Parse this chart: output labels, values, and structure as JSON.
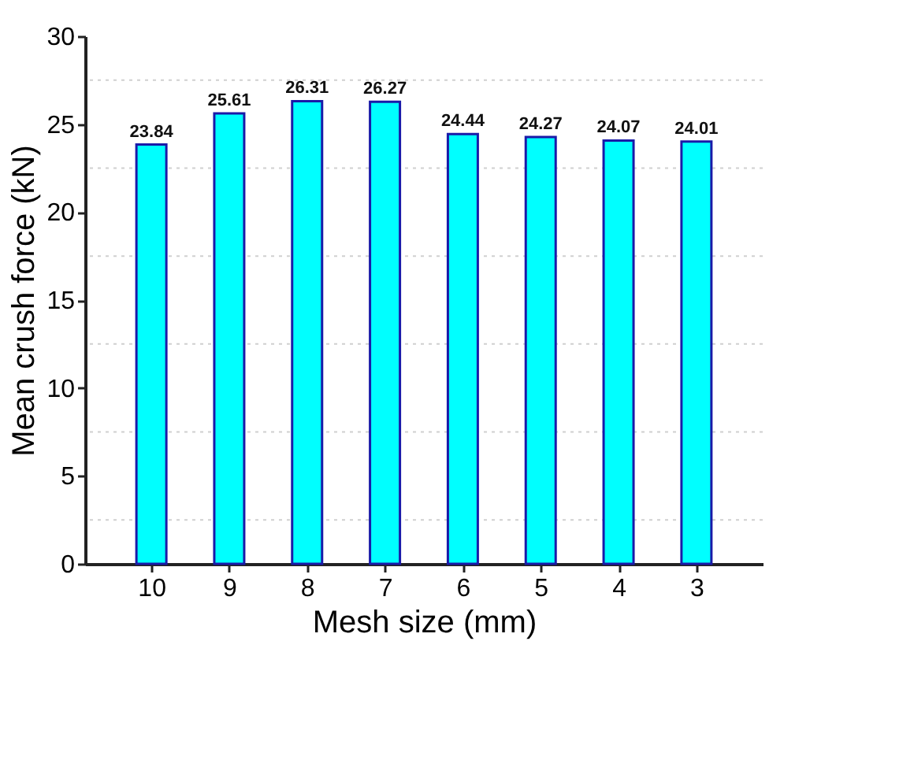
{
  "chart_data": {
    "type": "bar",
    "xlabel": "Mesh size (mm)",
    "ylabel": "Mean crush force (kN)",
    "categories": [
      "10",
      "9",
      "8",
      "7",
      "6",
      "5",
      "4",
      "3"
    ],
    "values": [
      23.84,
      25.61,
      26.31,
      26.27,
      24.44,
      24.27,
      24.07,
      24.01
    ],
    "color": "#00ffff",
    "data_labels": true,
    "grid": "y",
    "ylim": [
      0,
      30
    ],
    "yticks": [
      0,
      {
        "value": 2.5,
        "label": null
      },
      5,
      {
        "value": 7.5,
        "label": null
      },
      10,
      {
        "value": 12.5,
        "label": null
      },
      15,
      {
        "value": 17.5,
        "label": null
      },
      20,
      {
        "value": 22.5,
        "label": null
      },
      25,
      {
        "value": 27.5,
        "label": null
      },
      30
    ]
  }
}
